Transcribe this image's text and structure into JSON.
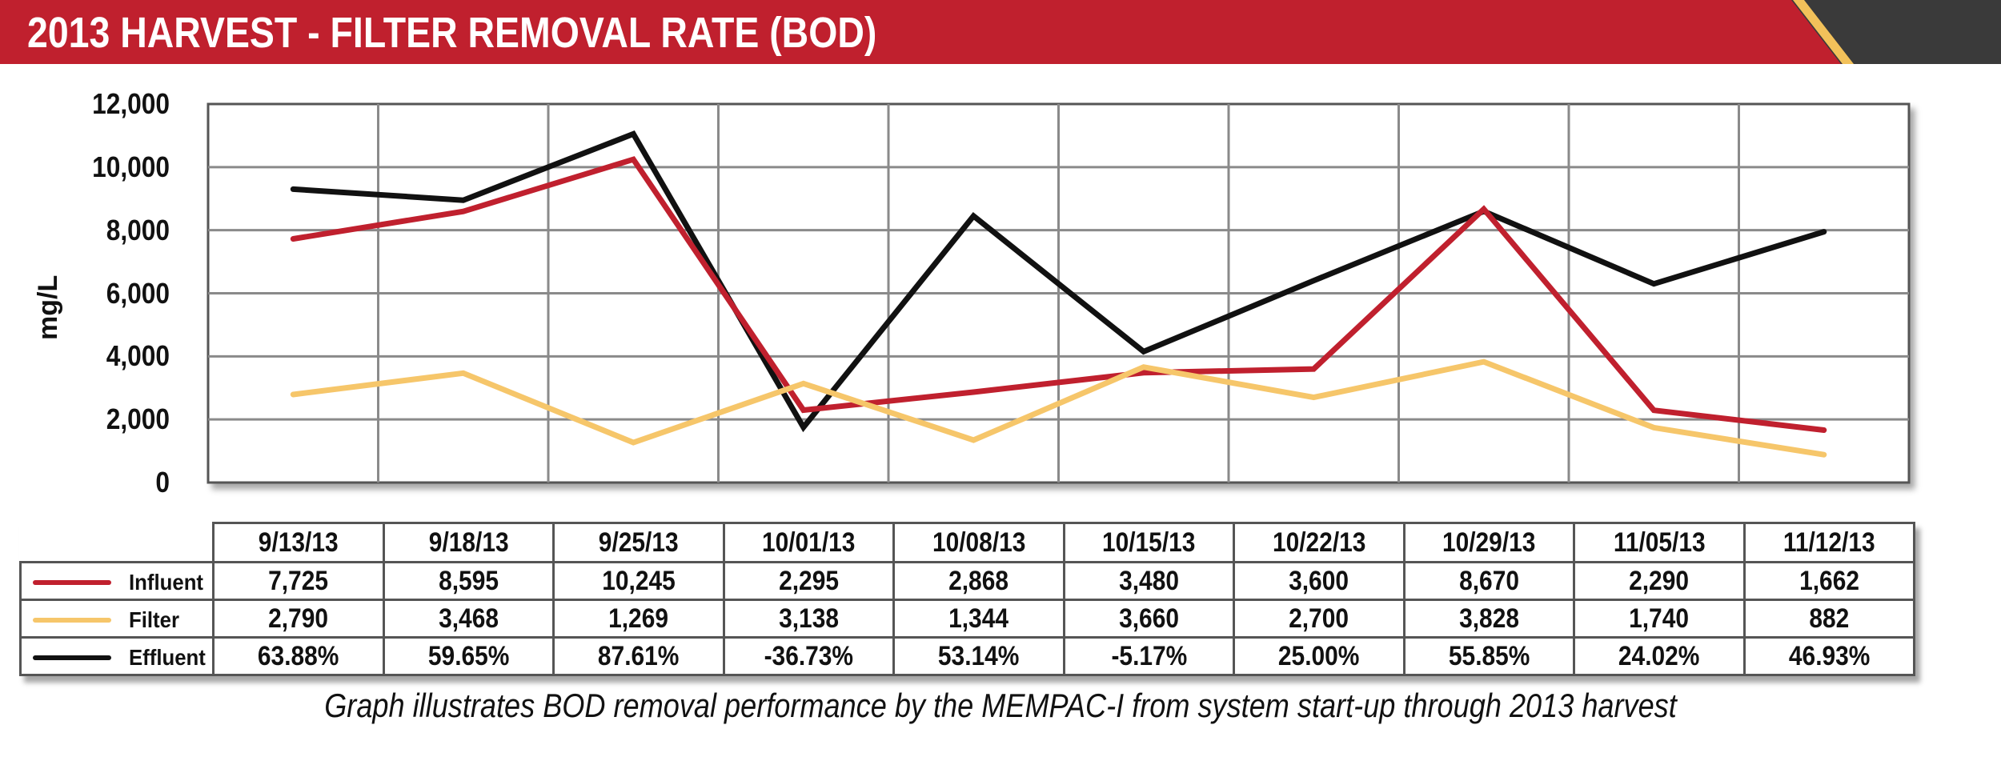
{
  "header": {
    "title": "2013 HARVEST - FILTER REMOVAL RATE (BOD)",
    "colors": {
      "red": "#c0202e",
      "dark": "#3a3a3a",
      "accent": "#f2c15a"
    }
  },
  "chart_data": {
    "type": "line",
    "title": "2013 HARVEST - FILTER REMOVAL RATE (BOD)",
    "xlabel": "",
    "ylabel": "mg/L",
    "ylim": [
      0,
      12000
    ],
    "yticks": [
      "12,000",
      "10,000",
      "8,000",
      "6,000",
      "4,000",
      "2,000",
      "0"
    ],
    "categories": [
      "9/13/13",
      "9/18/13",
      "9/25/13",
      "10/01/13",
      "10/08/13",
      "10/15/13",
      "10/22/13",
      "10/29/13",
      "11/05/13",
      "11/12/13"
    ],
    "series": [
      {
        "name": "Influent",
        "color": "#c0202e",
        "values": [
          7725,
          8595,
          10245,
          2295,
          2868,
          3480,
          3600,
          8670,
          2290,
          1662
        ],
        "labels": [
          "7,725",
          "8,595",
          "10,245",
          "2,295",
          "2,868",
          "3,480",
          "3,600",
          "8,670",
          "2,290",
          "1,662"
        ]
      },
      {
        "name": "Filter",
        "color": "#f6c66a",
        "values": [
          2790,
          3468,
          1269,
          3138,
          1344,
          3660,
          2700,
          3828,
          1740,
          882
        ],
        "labels": [
          "2,790",
          "3,468",
          "1,269",
          "3,138",
          "1,344",
          "3,660",
          "2,700",
          "3,828",
          "1,740",
          "882"
        ]
      },
      {
        "name": "Effluent",
        "color": "#111111",
        "values": [
          9300,
          8950,
          11050,
          1750,
          8450,
          4150,
          6400,
          8600,
          6300,
          7950
        ],
        "labels": [
          "63.88%",
          "59.65%",
          "87.61%",
          "-36.73%",
          "53.14%",
          "-5.17%",
          "25.00%",
          "55.85%",
          "24.02%",
          "46.93%"
        ]
      }
    ],
    "grid": true
  },
  "caption": "Graph illustrates BOD removal performance by the MEMPAC-I from system start-up through 2013 harvest"
}
